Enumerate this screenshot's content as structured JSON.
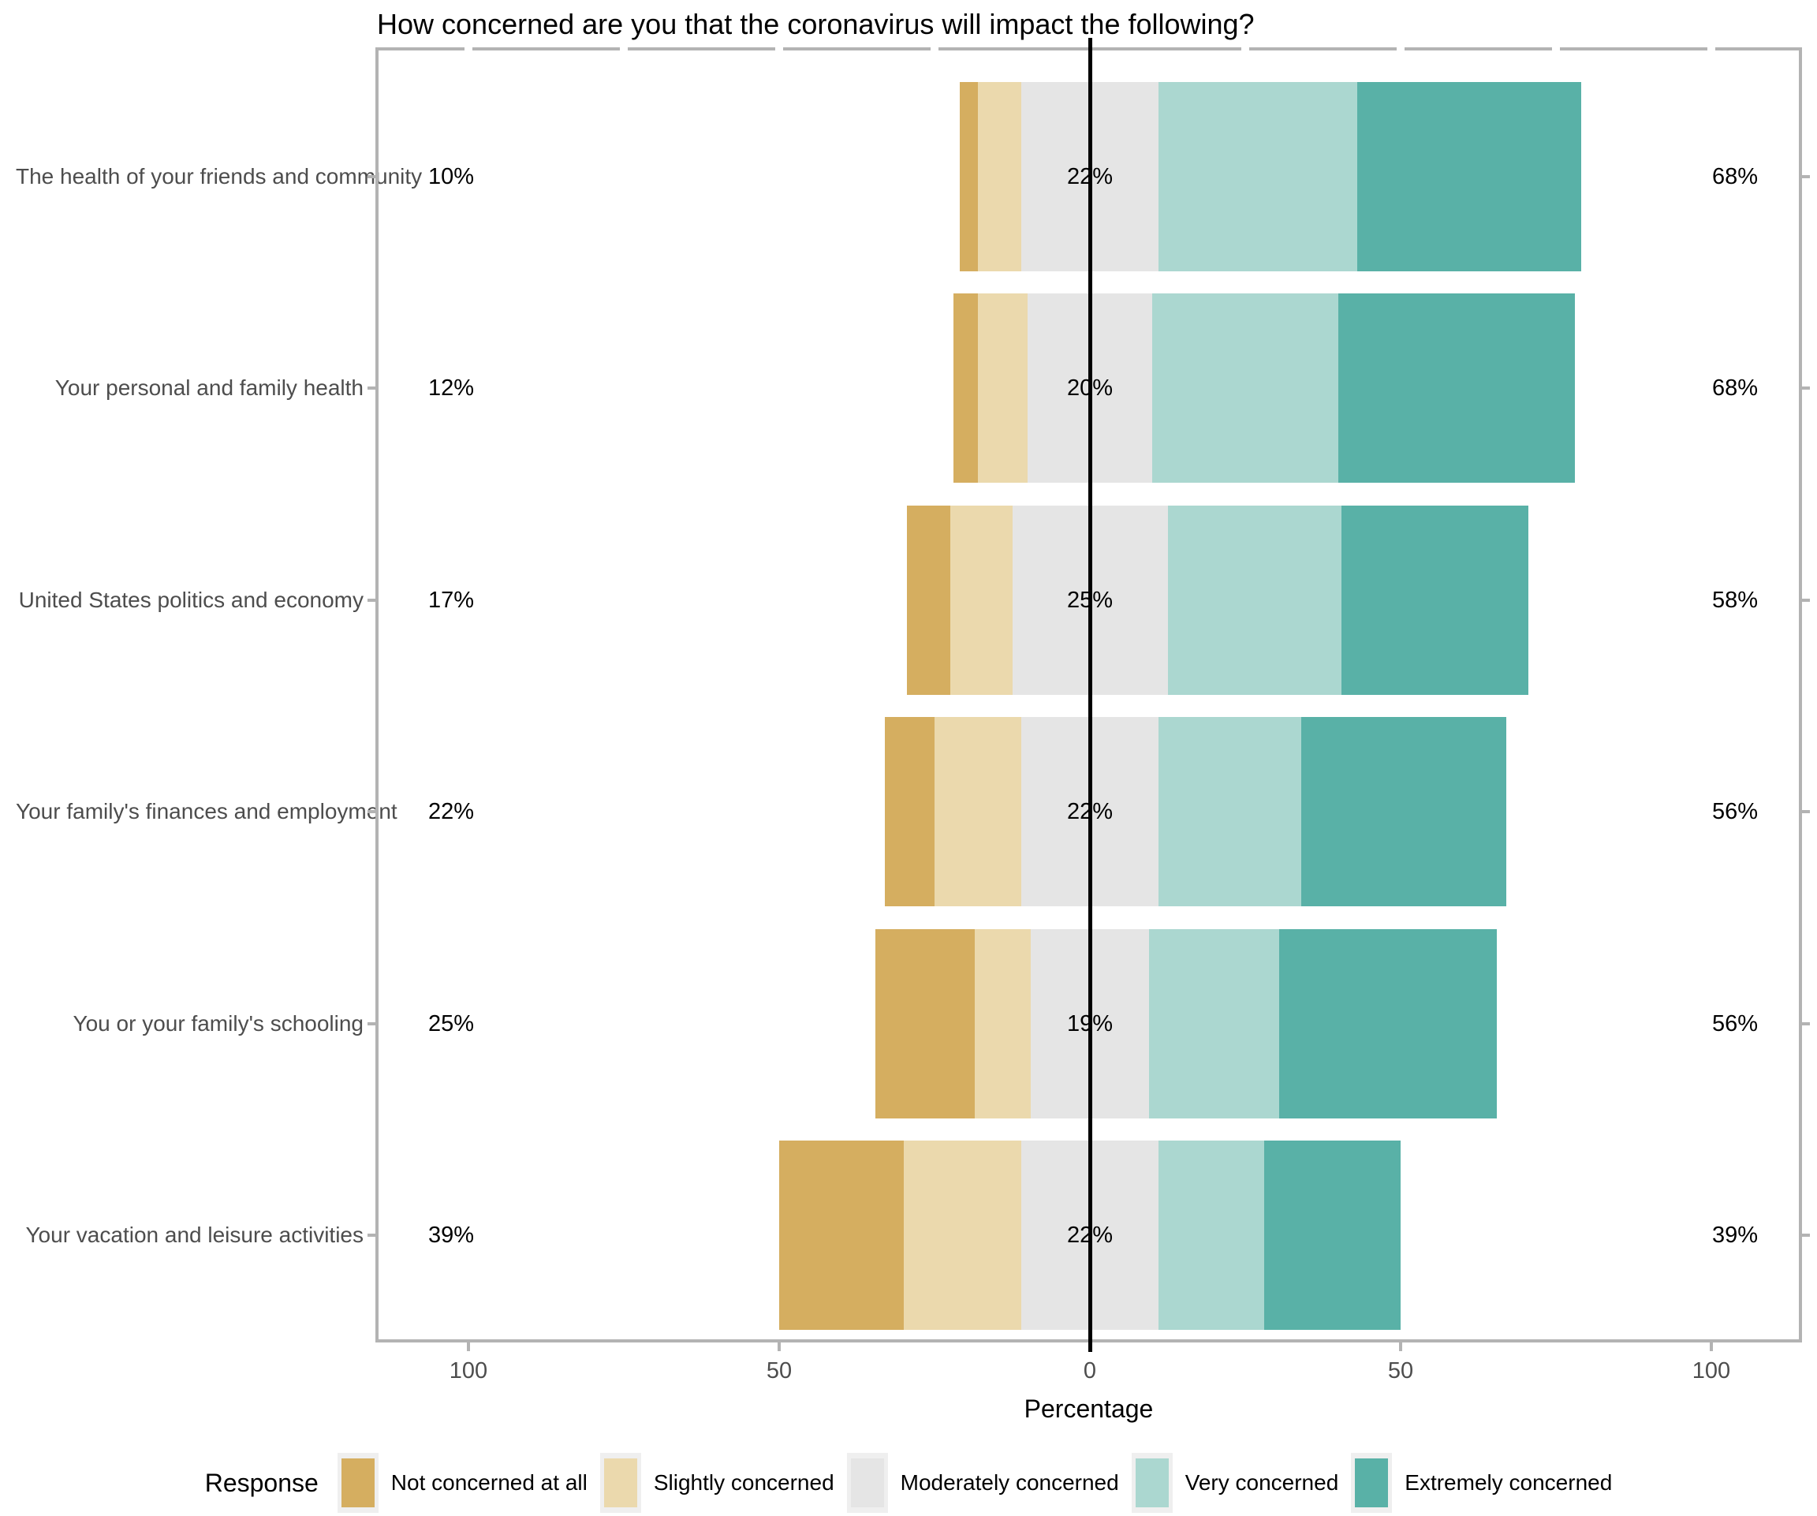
{
  "chart_data": {
    "type": "bar",
    "subtype": "diverging-stacked-likert",
    "title": "How concerned are you that the coronavirus will impact the following?",
    "categories": [
      "The health of your friends and community",
      "Your personal and family health",
      "United States politics and economy",
      "Your family's finances and employment",
      "You or your family's schooling",
      "Your vacation and leisure activities"
    ],
    "series": [
      {
        "name": "Not concerned at all",
        "color": "#d5ae60",
        "values": [
          3,
          4,
          7,
          8,
          16,
          20
        ]
      },
      {
        "name": "Slightly concerned",
        "color": "#ebd9ad",
        "values": [
          7,
          8,
          10,
          14,
          9,
          19
        ]
      },
      {
        "name": "Moderately concerned",
        "color": "#e5e5e5",
        "values": [
          22,
          20,
          25,
          22,
          19,
          22
        ]
      },
      {
        "name": "Very concerned",
        "color": "#abd7d0",
        "values": [
          32,
          30,
          28,
          23,
          21,
          17
        ]
      },
      {
        "name": "Extremely concerned",
        "color": "#59b1a7",
        "values": [
          36,
          38,
          30,
          33,
          35,
          22
        ]
      }
    ],
    "annotations": {
      "left_totals": [
        "10%",
        "12%",
        "17%",
        "22%",
        "25%",
        "39%"
      ],
      "center_values": [
        "22%",
        "20%",
        "25%",
        "22%",
        "19%",
        "22%"
      ],
      "right_totals": [
        "68%",
        "68%",
        "58%",
        "56%",
        "56%",
        "39%"
      ]
    },
    "xlabel": "Percentage",
    "x_ticks": [
      {
        "label": "100",
        "value": -100
      },
      {
        "label": "50",
        "value": -50
      },
      {
        "label": "0",
        "value": 0
      },
      {
        "label": "50",
        "value": 50
      },
      {
        "label": "100",
        "value": 100
      }
    ],
    "minor_tick_step": 25,
    "axis_range": [
      -114.5,
      114.5
    ],
    "center_line_at": 0,
    "alignment": "Moderately concerned segment centered on 0",
    "grid": false,
    "legend": {
      "title": "Response",
      "position": "bottom"
    }
  }
}
